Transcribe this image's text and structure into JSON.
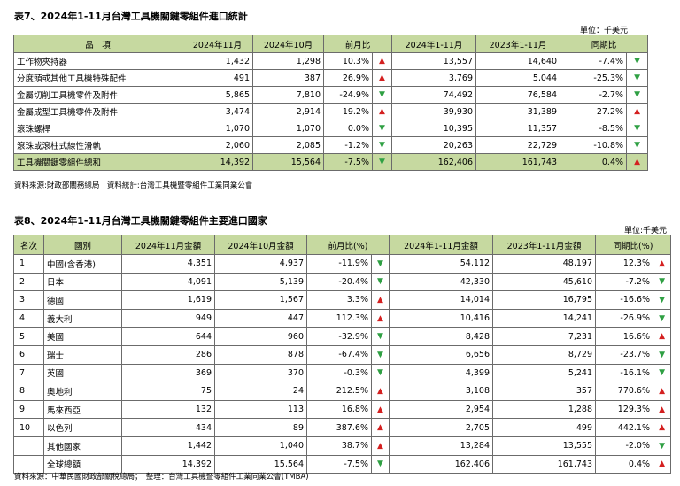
{
  "table7": {
    "title": "表7、2024年1-11月台灣工具機關鍵零組件進口統計",
    "unit": "單位：千美元",
    "headers": [
      "品　項",
      "2024年11月",
      "2024年10月",
      "前月比",
      "",
      "2024年1-11月",
      "2023年1-11月",
      "同期比",
      ""
    ],
    "rows": [
      {
        "item": "工作物夾持器",
        "m11": "1,432",
        "m10": "1,298",
        "mom": "10.3%",
        "mom_dir": "up",
        "ytd24": "13,557",
        "ytd23": "14,640",
        "yoy": "-7.4%",
        "yoy_dir": "down"
      },
      {
        "item": "分度頭或其他工具機特殊配件",
        "m11": "491",
        "m10": "387",
        "mom": "26.9%",
        "mom_dir": "up",
        "ytd24": "3,769",
        "ytd23": "5,044",
        "yoy": "-25.3%",
        "yoy_dir": "down"
      },
      {
        "item": "金屬切削工具機零件及附件",
        "m11": "5,865",
        "m10": "7,810",
        "mom": "-24.9%",
        "mom_dir": "down",
        "ytd24": "74,492",
        "ytd23": "76,584",
        "yoy": "-2.7%",
        "yoy_dir": "down"
      },
      {
        "item": "金屬成型工具機零件及附件",
        "m11": "3,474",
        "m10": "2,914",
        "mom": "19.2%",
        "mom_dir": "up",
        "ytd24": "39,930",
        "ytd23": "31,389",
        "yoy": "27.2%",
        "yoy_dir": "up"
      },
      {
        "item": "滾珠螺桿",
        "m11": "1,070",
        "m10": "1,070",
        "mom": "0.0%",
        "mom_dir": "down",
        "ytd24": "10,395",
        "ytd23": "11,357",
        "yoy": "-8.5%",
        "yoy_dir": "down"
      },
      {
        "item": "滾珠或滾柱式線性滑軌",
        "m11": "2,060",
        "m10": "2,085",
        "mom": "-1.2%",
        "mom_dir": "down",
        "ytd24": "20,263",
        "ytd23": "22,729",
        "yoy": "-10.8%",
        "yoy_dir": "down"
      }
    ],
    "total": {
      "item": "工具機關鍵零組件總和",
      "m11": "14,392",
      "m10": "15,564",
      "mom": "-7.5%",
      "mom_dir": "down",
      "ytd24": "162,406",
      "ytd23": "161,743",
      "yoy": "0.4%",
      "yoy_dir": "up"
    },
    "source": "資料來源:財政部關務總局　資料統計:台灣工具機暨零組件工業同業公會"
  },
  "table8": {
    "title": "表8、2024年1-11月台灣工具機關鍵零組件主要進口國家",
    "unit": "單位:千美元",
    "headers": [
      "名次",
      "國別",
      "2024年11月金額",
      "2024年10月金額",
      "前月比(%)",
      "",
      "2024年1-11月金額",
      "2023年1-11月金額",
      "同期比(%)",
      ""
    ],
    "rows": [
      {
        "rank": "1",
        "country": "中國(含香港)",
        "m11": "4,351",
        "m10": "4,937",
        "mom": "-11.9%",
        "mom_dir": "down",
        "ytd24": "54,112",
        "ytd23": "48,197",
        "yoy": "12.3%",
        "yoy_dir": "up"
      },
      {
        "rank": "2",
        "country": "日本",
        "m11": "4,091",
        "m10": "5,139",
        "mom": "-20.4%",
        "mom_dir": "down",
        "ytd24": "42,330",
        "ytd23": "45,610",
        "yoy": "-7.2%",
        "yoy_dir": "down"
      },
      {
        "rank": "3",
        "country": "德國",
        "m11": "1,619",
        "m10": "1,567",
        "mom": "3.3%",
        "mom_dir": "up",
        "ytd24": "14,014",
        "ytd23": "16,795",
        "yoy": "-16.6%",
        "yoy_dir": "down"
      },
      {
        "rank": "4",
        "country": "義大利",
        "m11": "949",
        "m10": "447",
        "mom": "112.3%",
        "mom_dir": "up",
        "ytd24": "10,416",
        "ytd23": "14,241",
        "yoy": "-26.9%",
        "yoy_dir": "down"
      },
      {
        "rank": "5",
        "country": "美國",
        "m11": "644",
        "m10": "960",
        "mom": "-32.9%",
        "mom_dir": "down",
        "ytd24": "8,428",
        "ytd23": "7,231",
        "yoy": "16.6%",
        "yoy_dir": "up"
      },
      {
        "rank": "6",
        "country": "瑞士",
        "m11": "286",
        "m10": "878",
        "mom": "-67.4%",
        "mom_dir": "down",
        "ytd24": "6,656",
        "ytd23": "8,729",
        "yoy": "-23.7%",
        "yoy_dir": "down"
      },
      {
        "rank": "7",
        "country": "英國",
        "m11": "369",
        "m10": "370",
        "mom": "-0.3%",
        "mom_dir": "down",
        "ytd24": "4,399",
        "ytd23": "5,241",
        "yoy": "-16.1%",
        "yoy_dir": "down"
      },
      {
        "rank": "8",
        "country": "奧地利",
        "m11": "75",
        "m10": "24",
        "mom": "212.5%",
        "mom_dir": "up",
        "ytd24": "3,108",
        "ytd23": "357",
        "yoy": "770.6%",
        "yoy_dir": "up"
      },
      {
        "rank": "9",
        "country": "馬來西亞",
        "m11": "132",
        "m10": "113",
        "mom": "16.8%",
        "mom_dir": "up",
        "ytd24": "2,954",
        "ytd23": "1,288",
        "yoy": "129.3%",
        "yoy_dir": "up"
      },
      {
        "rank": "10",
        "country": "以色列",
        "m11": "434",
        "m10": "89",
        "mom": "387.6%",
        "mom_dir": "up",
        "ytd24": "2,705",
        "ytd23": "499",
        "yoy": "442.1%",
        "yoy_dir": "up"
      },
      {
        "rank": "",
        "country": "其他國家",
        "m11": "1,442",
        "m10": "1,040",
        "mom": "38.7%",
        "mom_dir": "up",
        "ytd24": "13,284",
        "ytd23": "13,555",
        "yoy": "-2.0%",
        "yoy_dir": "down"
      },
      {
        "rank": "",
        "country": "全球總額",
        "m11": "14,392",
        "m10": "15,564",
        "mom": "-7.5%",
        "mom_dir": "down",
        "ytd24": "162,406",
        "ytd23": "161,743",
        "yoy": "0.4%",
        "yoy_dir": "up"
      }
    ],
    "source": "資料來源：中華民國財政部關稅總局；　整理：台灣工具機暨零組件工業同業公會(TMBA)"
  },
  "arrows": {
    "up": "▲",
    "down": "▼"
  },
  "colors": {
    "header_bg": "#c6d9a0",
    "up": "#d42020",
    "down": "#2fa043"
  }
}
